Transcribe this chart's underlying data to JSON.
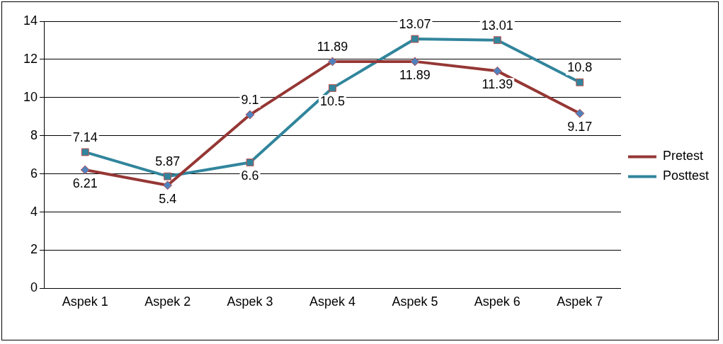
{
  "chart_data": {
    "type": "line",
    "categories": [
      "Aspek 1",
      "Aspek 2",
      "Aspek 3",
      "Aspek 4",
      "Aspek 5",
      "Aspek 6",
      "Aspek 7"
    ],
    "series": [
      {
        "name": "Pretest",
        "color": "#953735",
        "marker": "diamond",
        "values": [
          6.21,
          5.4,
          9.1,
          11.89,
          11.89,
          11.39,
          9.17
        ]
      },
      {
        "name": "Posttest",
        "color": "#31859c",
        "marker": "square",
        "values": [
          7.14,
          5.87,
          6.6,
          10.5,
          13.07,
          13.01,
          10.8
        ]
      }
    ],
    "ylim": [
      0,
      14
    ],
    "yticks": [
      0,
      2,
      4,
      6,
      8,
      10,
      12,
      14
    ],
    "grid": "y",
    "legend": "right",
    "data_labels": true,
    "line_style": "solid"
  }
}
